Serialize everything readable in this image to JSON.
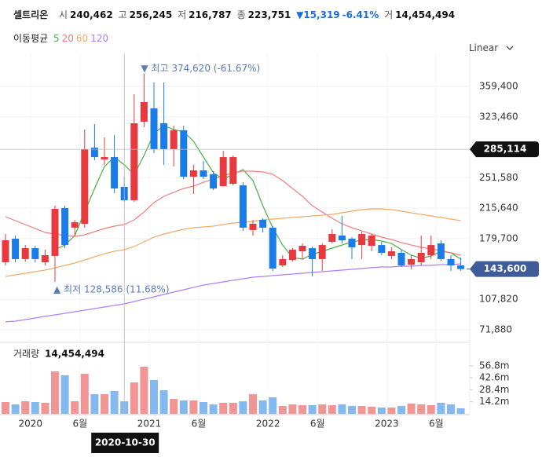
{
  "header": {
    "name": "셀트리온",
    "quotes": [
      {
        "key": "시",
        "value": "240,462"
      },
      {
        "key": "고",
        "value": "256,245"
      },
      {
        "key": "저",
        "value": "216,787"
      },
      {
        "key": "종",
        "value": "223,751"
      }
    ],
    "change": "▼15,319",
    "change_pct": "-6.41%",
    "volume_key": "거",
    "volume_value": "14,454,494",
    "ma_title": "이동평균",
    "scale_mode": "Linear"
  },
  "chart_data": {
    "type": "candlestick",
    "categories": [
      null,
      null,
      null,
      "2020",
      null,
      null,
      null,
      null,
      "6월",
      null,
      null,
      null,
      null,
      null,
      null,
      "2021",
      null,
      null,
      null,
      null,
      "6월",
      null,
      null,
      null,
      null,
      null,
      null,
      "2022",
      null,
      null,
      null,
      null,
      "6월",
      null,
      null,
      null,
      null,
      null,
      null,
      "2023",
      null,
      null,
      null,
      null,
      "6월",
      null,
      null
    ],
    "up_color": "#e8393f",
    "down_color": "#1a7ce8",
    "open": [
      151600,
      179500,
      155400,
      168300,
      151600,
      159100,
      215600,
      192500,
      197100,
      287100,
      273100,
      275900,
      240700,
      224900,
      317700,
      333400,
      315800,
      285200,
      307500,
      252700,
      260200,
      255500,
      241600,
      244400,
      242500,
      189700,
      201700,
      192500,
      147900,
      154400,
      164600,
      168300,
      155400,
      175800,
      183200,
      179500,
      172000,
      171100,
      172000,
      159100,
      162800,
      148900,
      151600,
      160000,
      173900,
      155400,
      147900
    ],
    "high": [
      185000,
      183200,
      172000,
      171100,
      166500,
      218400,
      218400,
      201700,
      308400,
      314900,
      299100,
      301900,
      252700,
      350100,
      374620,
      364000,
      364000,
      313000,
      313000,
      266700,
      271300,
      259200,
      283300,
      277800,
      246200,
      201700,
      203600,
      194300,
      160000,
      168300,
      173900,
      170200,
      173900,
      190600,
      206400,
      181300,
      187800,
      185000,
      175800,
      169300,
      166500,
      160000,
      183200,
      183200,
      177600,
      160000,
      157200
    ],
    "low": [
      147900,
      151600,
      152600,
      151600,
      147900,
      128586,
      168300,
      183200,
      192500,
      272200,
      266700,
      233300,
      223100,
      223100,
      311200,
      280600,
      266700,
      264800,
      250000,
      232300,
      250000,
      237000,
      240700,
      242500,
      188700,
      183200,
      186900,
      141400,
      146100,
      152600,
      155400,
      134900,
      141400,
      173900,
      173900,
      155400,
      155400,
      164600,
      160000,
      155400,
      146100,
      143300,
      147900,
      155400,
      153500,
      141400,
      141400
    ],
    "close": [
      177600,
      155400,
      168300,
      155400,
      160000,
      214700,
      172000,
      198900,
      285200,
      275900,
      275900,
      238800,
      224900,
      315800,
      340900,
      285200,
      285200,
      307500,
      252700,
      260200,
      252700,
      238800,
      275900,
      275900,
      192500,
      197100,
      192500,
      144200,
      155400,
      166500,
      171100,
      155400,
      172000,
      185000,
      177600,
      169300,
      185000,
      183200,
      162800,
      164600,
      147900,
      155400,
      162800,
      172000,
      155400,
      147900,
      143600
    ],
    "series": [
      {
        "name": "5",
        "color": "#45b045",
        "values": [
          null,
          null,
          null,
          null,
          null,
          166500,
          172000,
          183200,
          211000,
          238800,
          264800,
          275900,
          266700,
          255500,
          277800,
          303800,
          313000,
          308400,
          305600,
          294500,
          275900,
          257400,
          249900,
          255500,
          261100,
          248100,
          218400,
          192500,
          172000,
          157200,
          155400,
          160900,
          164600,
          168300,
          172000,
          175800,
          177600,
          178500,
          176700,
          173900,
          166500,
          160000,
          156300,
          159100,
          164600,
          162800,
          155400
        ]
      },
      {
        "name": "20",
        "color": "#ef7f7f",
        "values": [
          205400,
          200800,
          196200,
          191500,
          186900,
          185000,
          183200,
          182300,
          184100,
          187800,
          191500,
          194300,
          196200,
          201700,
          211000,
          222100,
          229600,
          234200,
          238800,
          241600,
          246200,
          249900,
          253700,
          257400,
          259200,
          259200,
          258300,
          255500,
          248100,
          238800,
          229600,
          218400,
          211000,
          203600,
          197100,
          192500,
          188700,
          185000,
          181300,
          178500,
          174800,
          172000,
          169300,
          167400,
          165600,
          162800,
          160000
        ]
      },
      {
        "name": "60",
        "color": "#f3ab6a",
        "values": [
          134900,
          136800,
          138700,
          140500,
          142400,
          145100,
          147900,
          150700,
          154400,
          158100,
          161800,
          164600,
          166500,
          170200,
          175800,
          181300,
          185000,
          187800,
          190600,
          192500,
          193400,
          194300,
          196200,
          198000,
          198900,
          199900,
          201700,
          202700,
          203600,
          204500,
          205400,
          206400,
          207300,
          208200,
          210100,
          211900,
          213800,
          214700,
          214700,
          213800,
          211900,
          210100,
          208200,
          206400,
          204500,
          202700,
          200800
        ]
      },
      {
        "name": "120",
        "color": "#b07ef0",
        "values": [
          81200,
          82100,
          83900,
          85800,
          87700,
          89500,
          91400,
          93200,
          95100,
          96900,
          98800,
          100600,
          102500,
          105300,
          108000,
          110800,
          113600,
          116400,
          119200,
          121900,
          124700,
          126600,
          128500,
          130300,
          132200,
          134000,
          134900,
          135900,
          136800,
          137700,
          138700,
          139600,
          140500,
          141400,
          142400,
          143300,
          144200,
          145200,
          146100,
          146100,
          147000,
          147000,
          147900,
          147900,
          148900,
          148900,
          149800
        ]
      }
    ],
    "ylim": [
      62600,
      389100
    ],
    "yticks": [
      {
        "value": 71880,
        "label": "71,880"
      },
      {
        "value": 107820,
        "label": "107,820"
      },
      {
        "value": 179700,
        "label": "179,700"
      },
      {
        "value": 215640,
        "label": "215,640"
      },
      {
        "value": 251580,
        "label": "251,580"
      },
      {
        "value": 323460,
        "label": "323,460"
      },
      {
        "value": 359400,
        "label": "359,400"
      }
    ],
    "grid": true,
    "annotations": {
      "high": "▼ 최고 374,620 (-61.67%)",
      "low": "▲ 최저 128,586 (11.68%)"
    },
    "crosshair": {
      "date": "2020-10-30",
      "price": {
        "value": 285114,
        "label": "285,114"
      }
    },
    "last_price": {
      "value": 143600,
      "label": "143,600"
    },
    "volume": {
      "title": "거래량",
      "total": "14,454,494",
      "up_color": "#f29595",
      "down_color": "#84b9ef",
      "values": [
        13900000,
        11100000,
        14800000,
        13900000,
        13000000,
        50100000,
        45500000,
        14800000,
        47300000,
        23200000,
        23200000,
        26900000,
        14800000,
        37100000,
        55700000,
        39900000,
        27800000,
        17600000,
        15800000,
        15800000,
        13900000,
        11100000,
        13000000,
        13000000,
        14800000,
        23200000,
        15800000,
        19500000,
        9300000,
        11100000,
        10200000,
        10200000,
        11100000,
        10200000,
        11100000,
        9300000,
        9300000,
        8400000,
        7400000,
        7400000,
        9300000,
        12100000,
        11100000,
        10200000,
        13000000,
        11100000,
        6500000
      ],
      "ylim": [
        0,
        80700000
      ],
      "yticks": [
        {
          "value": 14200000,
          "label": "14.2m"
        },
        {
          "value": 28400000,
          "label": "28.4m"
        },
        {
          "value": 42600000,
          "label": "42.6m"
        },
        {
          "value": 56800000,
          "label": "56.8m"
        }
      ]
    }
  }
}
